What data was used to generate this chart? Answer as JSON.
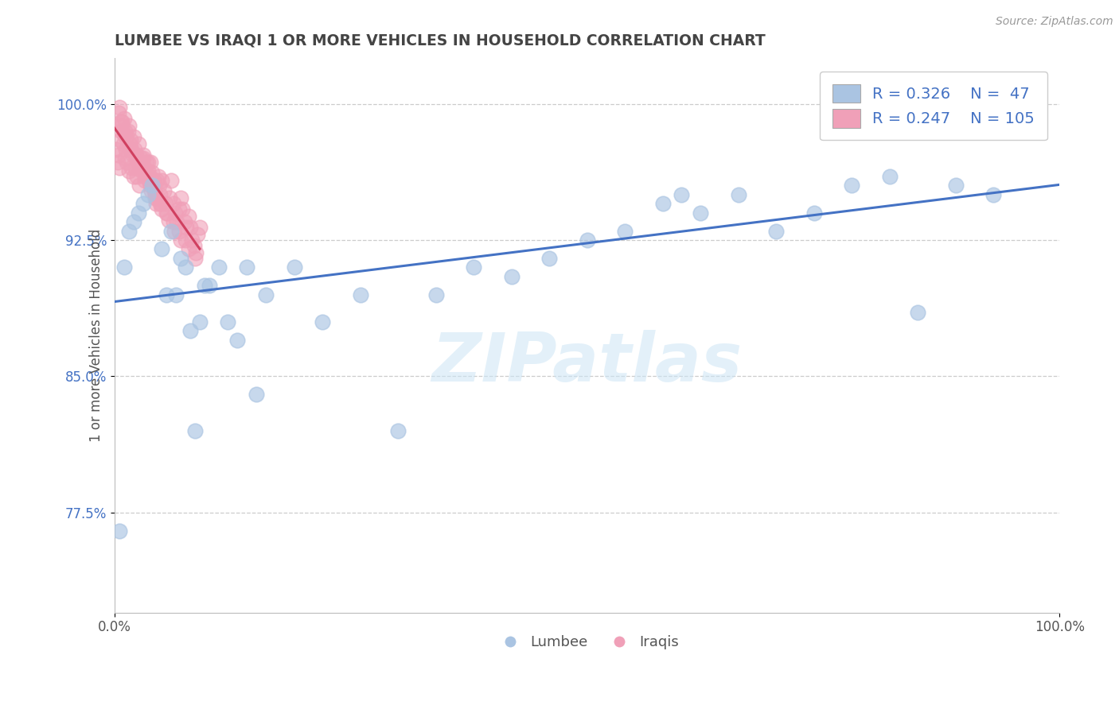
{
  "title": "LUMBEE VS IRAQI 1 OR MORE VEHICLES IN HOUSEHOLD CORRELATION CHART",
  "source": "Source: ZipAtlas.com",
  "ylabel": "1 or more Vehicles in Household",
  "watermark": "ZIPatlas",
  "lumbee_R": 0.326,
  "lumbee_N": 47,
  "iraqi_R": 0.247,
  "iraqi_N": 105,
  "xlim": [
    0.0,
    1.0
  ],
  "ylim": [
    0.72,
    1.025
  ],
  "yticks": [
    0.775,
    0.85,
    0.925,
    1.0
  ],
  "ytick_labels": [
    "77.5%",
    "85.0%",
    "92.5%",
    "100.0%"
  ],
  "xtick_labels": [
    "0.0%",
    "100.0%"
  ],
  "xticks": [
    0.0,
    1.0
  ],
  "lumbee_color": "#aac4e2",
  "iraqi_color": "#f0a0b8",
  "lumbee_line_color": "#4472c4",
  "iraqi_line_color": "#d04060",
  "legend_label_color": "#4472c4",
  "title_color": "#444444",
  "grid_color": "#cccccc",
  "background_color": "#ffffff",
  "lumbee_scatter_x": [
    0.005,
    0.01,
    0.015,
    0.02,
    0.025,
    0.03,
    0.035,
    0.04,
    0.05,
    0.06,
    0.07,
    0.08,
    0.09,
    0.1,
    0.12,
    0.14,
    0.16,
    0.19,
    0.22,
    0.26,
    0.3,
    0.34,
    0.38,
    0.42,
    0.46,
    0.5,
    0.54,
    0.58,
    0.62,
    0.66,
    0.7,
    0.74,
    0.78,
    0.82,
    0.85,
    0.89,
    0.93,
    0.97,
    0.055,
    0.065,
    0.075,
    0.085,
    0.095,
    0.11,
    0.13,
    0.15,
    0.6
  ],
  "lumbee_scatter_y": [
    0.765,
    0.91,
    0.93,
    0.935,
    0.94,
    0.945,
    0.95,
    0.955,
    0.92,
    0.93,
    0.915,
    0.875,
    0.88,
    0.9,
    0.88,
    0.91,
    0.895,
    0.91,
    0.88,
    0.895,
    0.82,
    0.895,
    0.91,
    0.905,
    0.915,
    0.925,
    0.93,
    0.945,
    0.94,
    0.95,
    0.93,
    0.94,
    0.955,
    0.96,
    0.885,
    0.955,
    0.95,
    1.0,
    0.895,
    0.895,
    0.91,
    0.82,
    0.9,
    0.91,
    0.87,
    0.84,
    0.95
  ],
  "iraqi_scatter_x": [
    0.002,
    0.003,
    0.004,
    0.005,
    0.006,
    0.007,
    0.008,
    0.009,
    0.01,
    0.011,
    0.012,
    0.013,
    0.014,
    0.015,
    0.016,
    0.017,
    0.018,
    0.019,
    0.02,
    0.021,
    0.022,
    0.023,
    0.024,
    0.025,
    0.026,
    0.027,
    0.028,
    0.029,
    0.03,
    0.031,
    0.032,
    0.033,
    0.034,
    0.035,
    0.036,
    0.037,
    0.038,
    0.039,
    0.04,
    0.041,
    0.042,
    0.043,
    0.044,
    0.045,
    0.046,
    0.047,
    0.048,
    0.049,
    0.05,
    0.052,
    0.054,
    0.056,
    0.058,
    0.06,
    0.062,
    0.064,
    0.066,
    0.068,
    0.07,
    0.072,
    0.074,
    0.076,
    0.078,
    0.08,
    0.082,
    0.084,
    0.086,
    0.088,
    0.09,
    0.005,
    0.01,
    0.015,
    0.02,
    0.025,
    0.03,
    0.035,
    0.008,
    0.012,
    0.018,
    0.022,
    0.027,
    0.033,
    0.038,
    0.043,
    0.048,
    0.055,
    0.062,
    0.068,
    0.075,
    0.004,
    0.007,
    0.011,
    0.016,
    0.023,
    0.028,
    0.034,
    0.039,
    0.044,
    0.05,
    0.057,
    0.063,
    0.07,
    0.078,
    0.085
  ],
  "iraqi_scatter_y": [
    0.975,
    0.968,
    0.972,
    0.965,
    0.98,
    0.985,
    0.99,
    0.978,
    0.983,
    0.97,
    0.975,
    0.968,
    0.985,
    0.963,
    0.975,
    0.98,
    0.965,
    0.972,
    0.96,
    0.975,
    0.965,
    0.97,
    0.96,
    0.968,
    0.955,
    0.965,
    0.97,
    0.963,
    0.97,
    0.965,
    0.958,
    0.96,
    0.968,
    0.963,
    0.958,
    0.96,
    0.968,
    0.958,
    0.962,
    0.958,
    0.952,
    0.948,
    0.945,
    0.958,
    0.96,
    0.955,
    0.95,
    0.945,
    0.958,
    0.952,
    0.945,
    0.94,
    0.948,
    0.958,
    0.945,
    0.94,
    0.935,
    0.942,
    0.948,
    0.942,
    0.935,
    0.932,
    0.938,
    0.932,
    0.925,
    0.922,
    0.918,
    0.928,
    0.932,
    0.998,
    0.992,
    0.988,
    0.982,
    0.978,
    0.972,
    0.968,
    0.988,
    0.982,
    0.975,
    0.972,
    0.965,
    0.96,
    0.955,
    0.95,
    0.945,
    0.94,
    0.935,
    0.93,
    0.925,
    0.995,
    0.99,
    0.985,
    0.978,
    0.972,
    0.965,
    0.96,
    0.952,
    0.948,
    0.942,
    0.936,
    0.93,
    0.925,
    0.92,
    0.915
  ]
}
